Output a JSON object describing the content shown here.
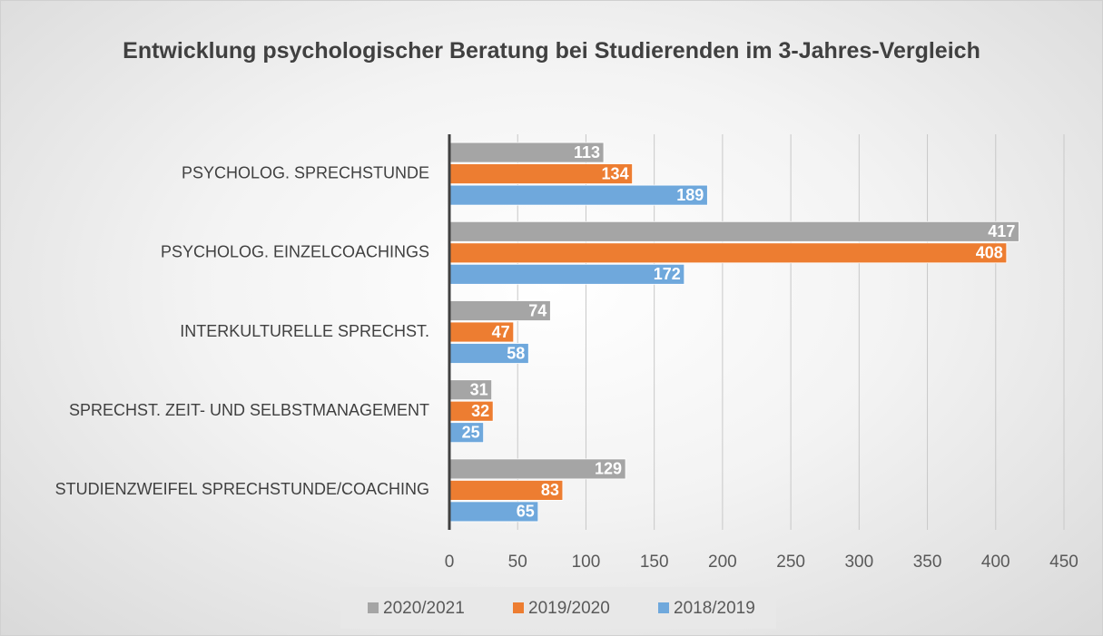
{
  "chart_data": {
    "type": "bar",
    "orientation": "horizontal",
    "title": "Entwicklung psychologischer Beratung bei Studierenden im 3-Jahres-Vergleich",
    "categories": [
      "PSYCHOLOG. SPRECHSTUNDE",
      "PSYCHOLOG. EINZELCOACHINGS",
      "INTERKULTURELLE SPRECHST.",
      "SPRECHST. ZEIT- UND SELBSTMANAGEMENT",
      "STUDIENZWEIFEL SPRECHSTUNDE/COACHING"
    ],
    "series": [
      {
        "name": "2020/2021",
        "color": "#a5a5a5",
        "values": [
          113,
          417,
          74,
          31,
          129
        ]
      },
      {
        "name": "2019/2020",
        "color": "#ed7d31",
        "values": [
          134,
          408,
          47,
          32,
          83
        ]
      },
      {
        "name": "2018/2019",
        "color": "#6fa8dc",
        "values": [
          189,
          172,
          58,
          25,
          65
        ]
      }
    ],
    "xlim": [
      0,
      450
    ],
    "xticks": [
      0,
      50,
      100,
      150,
      200,
      250,
      300,
      350,
      400,
      450
    ],
    "grid": true,
    "legend": "bottom"
  }
}
